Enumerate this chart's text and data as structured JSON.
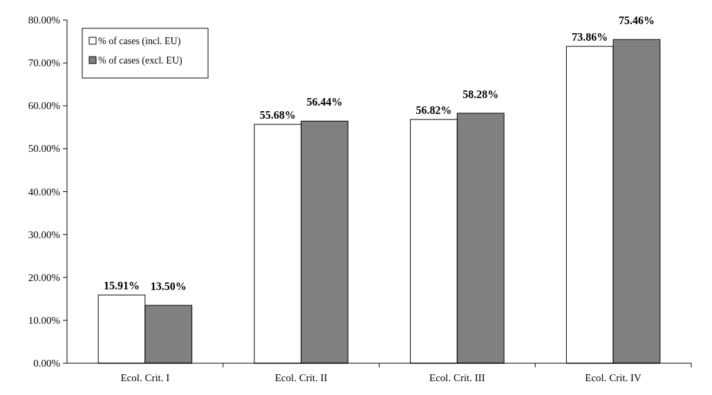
{
  "chart_data": {
    "type": "bar",
    "categories": [
      "Ecol. Crit. I",
      "Ecol. Crit. II",
      "Ecol. Crit. III",
      "Ecol. Crit. IV"
    ],
    "series": [
      {
        "name": "% of cases (incl. EU)",
        "color": "#ffffff",
        "values": [
          15.91,
          55.68,
          56.82,
          73.86
        ],
        "value_labels": [
          "15.91%",
          "55.68%",
          "56.82%",
          "73.86%"
        ]
      },
      {
        "name": "% of cases (excl. EU)",
        "color": "#808080",
        "values": [
          13.5,
          56.44,
          58.28,
          75.46
        ],
        "value_labels": [
          "13.50%",
          "56.44%",
          "58.28%",
          "75.46%"
        ]
      }
    ],
    "ylim": [
      0,
      80
    ],
    "yticks": [
      {
        "value": 0,
        "label": "0.00%"
      },
      {
        "value": 10,
        "label": "10.00%"
      },
      {
        "value": 20,
        "label": "20.00%"
      },
      {
        "value": 30,
        "label": "30.00%"
      },
      {
        "value": 40,
        "label": "40.00%"
      },
      {
        "value": 50,
        "label": "50.00%"
      },
      {
        "value": 60,
        "label": "60.00%"
      },
      {
        "value": 70,
        "label": "70.00%"
      },
      {
        "value": 80,
        "label": "80.00%"
      }
    ],
    "legend": "top left"
  }
}
